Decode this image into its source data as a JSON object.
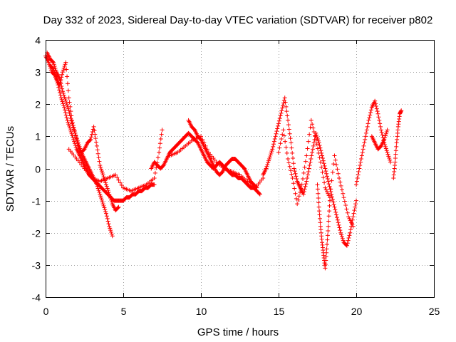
{
  "chart_data": {
    "type": "scatter",
    "title": "Day 332 of 2023, Sidereal Day-to-day VTEC variation (SDTVAR) for receiver p802",
    "xlabel": "GPS time / hours",
    "ylabel": "SDTVAR / TECUs",
    "xlim": [
      0,
      25
    ],
    "ylim": [
      -4,
      4
    ],
    "xticks": [
      0,
      5,
      10,
      15,
      20,
      25
    ],
    "xtick_labels": [
      "0",
      "5",
      "10",
      "15",
      "20",
      "25"
    ],
    "yticks": [
      -4,
      -3,
      -2,
      -1,
      0,
      1,
      2,
      3,
      4
    ],
    "ytick_labels": [
      "-4",
      "-3",
      "-2",
      "-1",
      "0",
      "1",
      "2",
      "3",
      "4"
    ],
    "grid": true,
    "marker": "+",
    "series": [
      {
        "name": "SDTVAR",
        "color": "#ff0000",
        "segments": [
          {
            "x": [
              0.0,
              0.2,
              0.4,
              0.6,
              0.8,
              1.0,
              1.2,
              1.4,
              1.6,
              1.8,
              2.0,
              2.2,
              2.4,
              2.6,
              2.8,
              3.0,
              3.2,
              3.4,
              3.6,
              3.8,
              4.0,
              4.2,
              4.4,
              4.6,
              4.8,
              5.0,
              5.2,
              5.4,
              5.6,
              5.8,
              6.0,
              6.2,
              6.4,
              6.6,
              6.8,
              7.0
            ],
            "y": [
              3.5,
              3.3,
              3.0,
              2.9,
              2.6,
              2.2,
              1.9,
              1.5,
              1.2,
              0.9,
              0.6,
              0.4,
              0.2,
              0.0,
              -0.2,
              -0.3,
              -0.4,
              -0.5,
              -0.6,
              -0.7,
              -0.8,
              -0.9,
              -1.0,
              -1.0,
              -1.0,
              -1.0,
              -0.9,
              -0.9,
              -0.8,
              -0.8,
              -0.7,
              -0.7,
              -0.6,
              -0.6,
              -0.5,
              -0.5
            ]
          },
          {
            "x": [
              0.1,
              0.3,
              0.5,
              0.7,
              0.9,
              1.1,
              1.3,
              1.5,
              1.7,
              1.9,
              2.1,
              2.3,
              2.5,
              2.7,
              2.9,
              3.1,
              3.3,
              3.5,
              3.7,
              3.9,
              4.1,
              4.3
            ],
            "y": [
              3.6,
              3.4,
              3.3,
              3.0,
              2.8,
              2.4,
              2.1,
              1.8,
              1.4,
              1.1,
              0.8,
              0.5,
              0.3,
              0.1,
              -0.1,
              -0.3,
              -0.5,
              -0.8,
              -1.1,
              -1.4,
              -1.8,
              -2.1
            ]
          },
          {
            "x": [
              0.3,
              0.5,
              0.7,
              0.9,
              1.1,
              1.3,
              1.5,
              1.7,
              1.9,
              2.1,
              2.3,
              2.5,
              2.7,
              2.9,
              3.1,
              3.3,
              3.5,
              3.7,
              3.9,
              4.1,
              4.3,
              4.5,
              4.7
            ],
            "y": [
              3.2,
              3.1,
              2.8,
              2.6,
              3.0,
              3.3,
              2.2,
              1.5,
              1.1,
              0.7,
              0.5,
              0.6,
              0.8,
              0.9,
              1.3,
              0.7,
              0.1,
              -0.2,
              -0.5,
              -0.8,
              -1.1,
              -1.3,
              -1.2
            ]
          },
          {
            "x": [
              1.5,
              2.0,
              2.5,
              3.0,
              3.5,
              4.0,
              4.5,
              5.0,
              5.5,
              6.0,
              6.5,
              7.0,
              7.3,
              7.5
            ],
            "y": [
              0.6,
              0.3,
              0.0,
              -0.3,
              -0.4,
              -0.3,
              -0.2,
              -0.6,
              -0.7,
              -0.6,
              -0.5,
              -0.3,
              0.5,
              1.2
            ]
          },
          {
            "x": [
              6.8,
              7.0,
              7.2,
              7.4,
              7.6,
              7.8,
              8.0,
              8.2,
              8.4,
              8.6,
              8.8,
              9.0,
              9.2,
              9.4,
              9.6,
              9.8,
              10.0,
              10.2,
              10.4,
              10.6,
              10.8,
              11.0,
              11.2,
              11.4,
              11.6,
              11.8,
              12.0,
              12.2,
              12.4,
              12.6,
              12.8,
              13.0,
              13.2,
              13.4,
              13.6,
              13.8
            ],
            "y": [
              0.0,
              0.2,
              0.1,
              0.0,
              0.1,
              0.3,
              0.5,
              0.6,
              0.7,
              0.8,
              0.9,
              1.0,
              1.1,
              1.0,
              0.9,
              0.8,
              0.6,
              0.4,
              0.2,
              0.1,
              0.0,
              0.1,
              0.2,
              0.1,
              0.0,
              -0.1,
              -0.2,
              -0.2,
              -0.3,
              -0.3,
              -0.4,
              -0.5,
              -0.6,
              -0.6,
              -0.7,
              -0.8
            ]
          },
          {
            "x": [
              9.2,
              9.4,
              9.6,
              9.8,
              10.0,
              10.2,
              10.4,
              10.6,
              10.8,
              11.0,
              11.2,
              11.4,
              11.6,
              11.8,
              12.0,
              12.2,
              12.4,
              12.6,
              12.8,
              13.0,
              13.2,
              13.4,
              13.6
            ],
            "y": [
              1.5,
              1.3,
              1.2,
              1.0,
              0.9,
              0.7,
              0.5,
              0.3,
              0.1,
              -0.1,
              -0.2,
              -0.1,
              0.1,
              0.2,
              0.3,
              0.3,
              0.2,
              0.1,
              0.0,
              -0.2,
              -0.4,
              -0.5,
              -0.6
            ]
          },
          {
            "x": [
              8.0,
              8.5,
              9.0,
              9.5,
              10.0,
              10.5,
              11.0,
              11.5,
              12.0,
              12.5,
              13.0,
              13.5,
              14.0
            ],
            "y": [
              0.4,
              0.5,
              0.7,
              0.9,
              1.0,
              0.5,
              0.2,
              0.0,
              -0.1,
              -0.2,
              -0.4,
              -0.6,
              -0.3
            ]
          },
          {
            "x": [
              14.0,
              14.2,
              14.4,
              14.6,
              14.8,
              15.0,
              15.2,
              15.4,
              15.6,
              15.8,
              16.0,
              16.2,
              16.4,
              16.6,
              16.8,
              17.0,
              17.2,
              17.4,
              17.6,
              17.8,
              18.0,
              18.2,
              18.4,
              18.6,
              18.8,
              19.0,
              19.2,
              19.4,
              19.6,
              19.8,
              20.0
            ],
            "y": [
              -0.2,
              0.0,
              0.3,
              0.6,
              1.0,
              1.4,
              1.8,
              2.2,
              1.5,
              0.8,
              0.0,
              -0.4,
              -0.6,
              -0.8,
              -0.4,
              0.1,
              0.6,
              1.1,
              0.8,
              0.4,
              0.0,
              -0.4,
              -0.8,
              -1.2,
              -1.6,
              -2.0,
              -2.3,
              -2.4,
              -2.0,
              -1.5,
              -1.0
            ]
          },
          {
            "x": [
              15.0,
              15.3,
              15.6,
              15.9,
              16.2,
              16.5,
              16.8,
              17.1,
              17.4,
              17.7,
              18.0,
              18.3,
              18.6,
              18.9,
              19.2,
              19.5,
              19.8
            ],
            "y": [
              0.5,
              1.2,
              0.3,
              -0.3,
              -1.1,
              -0.5,
              0.4,
              1.5,
              0.9,
              0.2,
              -0.6,
              -0.9,
              0.4,
              -0.3,
              -0.9,
              -1.5,
              -1.8
            ]
          },
          {
            "x": [
              17.5,
              17.6,
              17.7,
              17.8,
              17.9,
              18.0,
              18.1,
              18.2,
              18.3
            ],
            "y": [
              -0.5,
              -1.2,
              -1.8,
              -2.3,
              -2.7,
              -3.1,
              -2.5,
              -1.8,
              -1.0
            ]
          },
          {
            "x": [
              20.0,
              20.2,
              20.4,
              20.6,
              20.8,
              21.0,
              21.2,
              21.4,
              21.6,
              21.8,
              22.0,
              22.2
            ],
            "y": [
              -0.5,
              0.0,
              0.5,
              1.0,
              1.5,
              1.9,
              2.1,
              1.7,
              1.2,
              0.8,
              0.5,
              0.2
            ]
          },
          {
            "x": [
              21.0,
              21.2,
              21.4,
              21.6,
              21.8,
              22.0
            ],
            "y": [
              1.0,
              0.8,
              0.6,
              0.7,
              0.9,
              1.2
            ]
          },
          {
            "x": [
              22.4,
              22.5,
              22.6,
              22.7,
              22.8,
              22.9
            ],
            "y": [
              -0.3,
              0.2,
              0.8,
              1.3,
              1.7,
              1.8
            ]
          }
        ]
      }
    ]
  }
}
